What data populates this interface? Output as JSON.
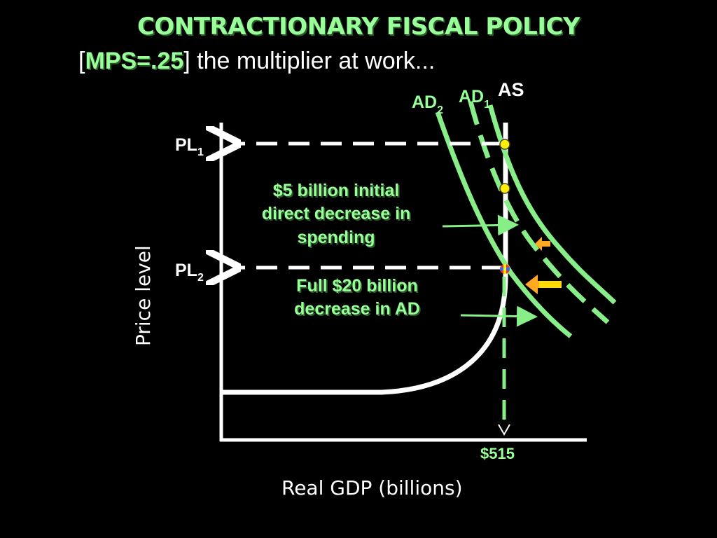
{
  "title": "CONTRACTIONARY FISCAL POLICY",
  "subtitle": {
    "open_bracket": "[",
    "mps": "MPS=.25",
    "rest": "] the multiplier at work..."
  },
  "labels": {
    "as": "AS",
    "ad1_main": "AD",
    "ad1_sub": "1",
    "ad2_main": "AD",
    "ad2_sub": "2",
    "pl1_main": "PL",
    "pl1_sub": "1",
    "pl2_main": "PL",
    "pl2_sub": "2",
    "gdp_value": "$515"
  },
  "annotations": {
    "initial_line1": "$5 billion initial",
    "initial_line2": "direct decrease in",
    "initial_line3": "spending",
    "full_line1": "Full $20 billion",
    "full_line2": "decrease in AD"
  },
  "axes": {
    "x_title": "Real GDP (billions)",
    "y_title": "Price level"
  },
  "colors": {
    "curve_green": "#88ee88",
    "text_green": "#99ff99",
    "point_yellow": "#ffee00",
    "arrow_orange": "#ffaa22",
    "arrow_yellow": "#ffdd00",
    "axis_white": "#ffffff"
  }
}
